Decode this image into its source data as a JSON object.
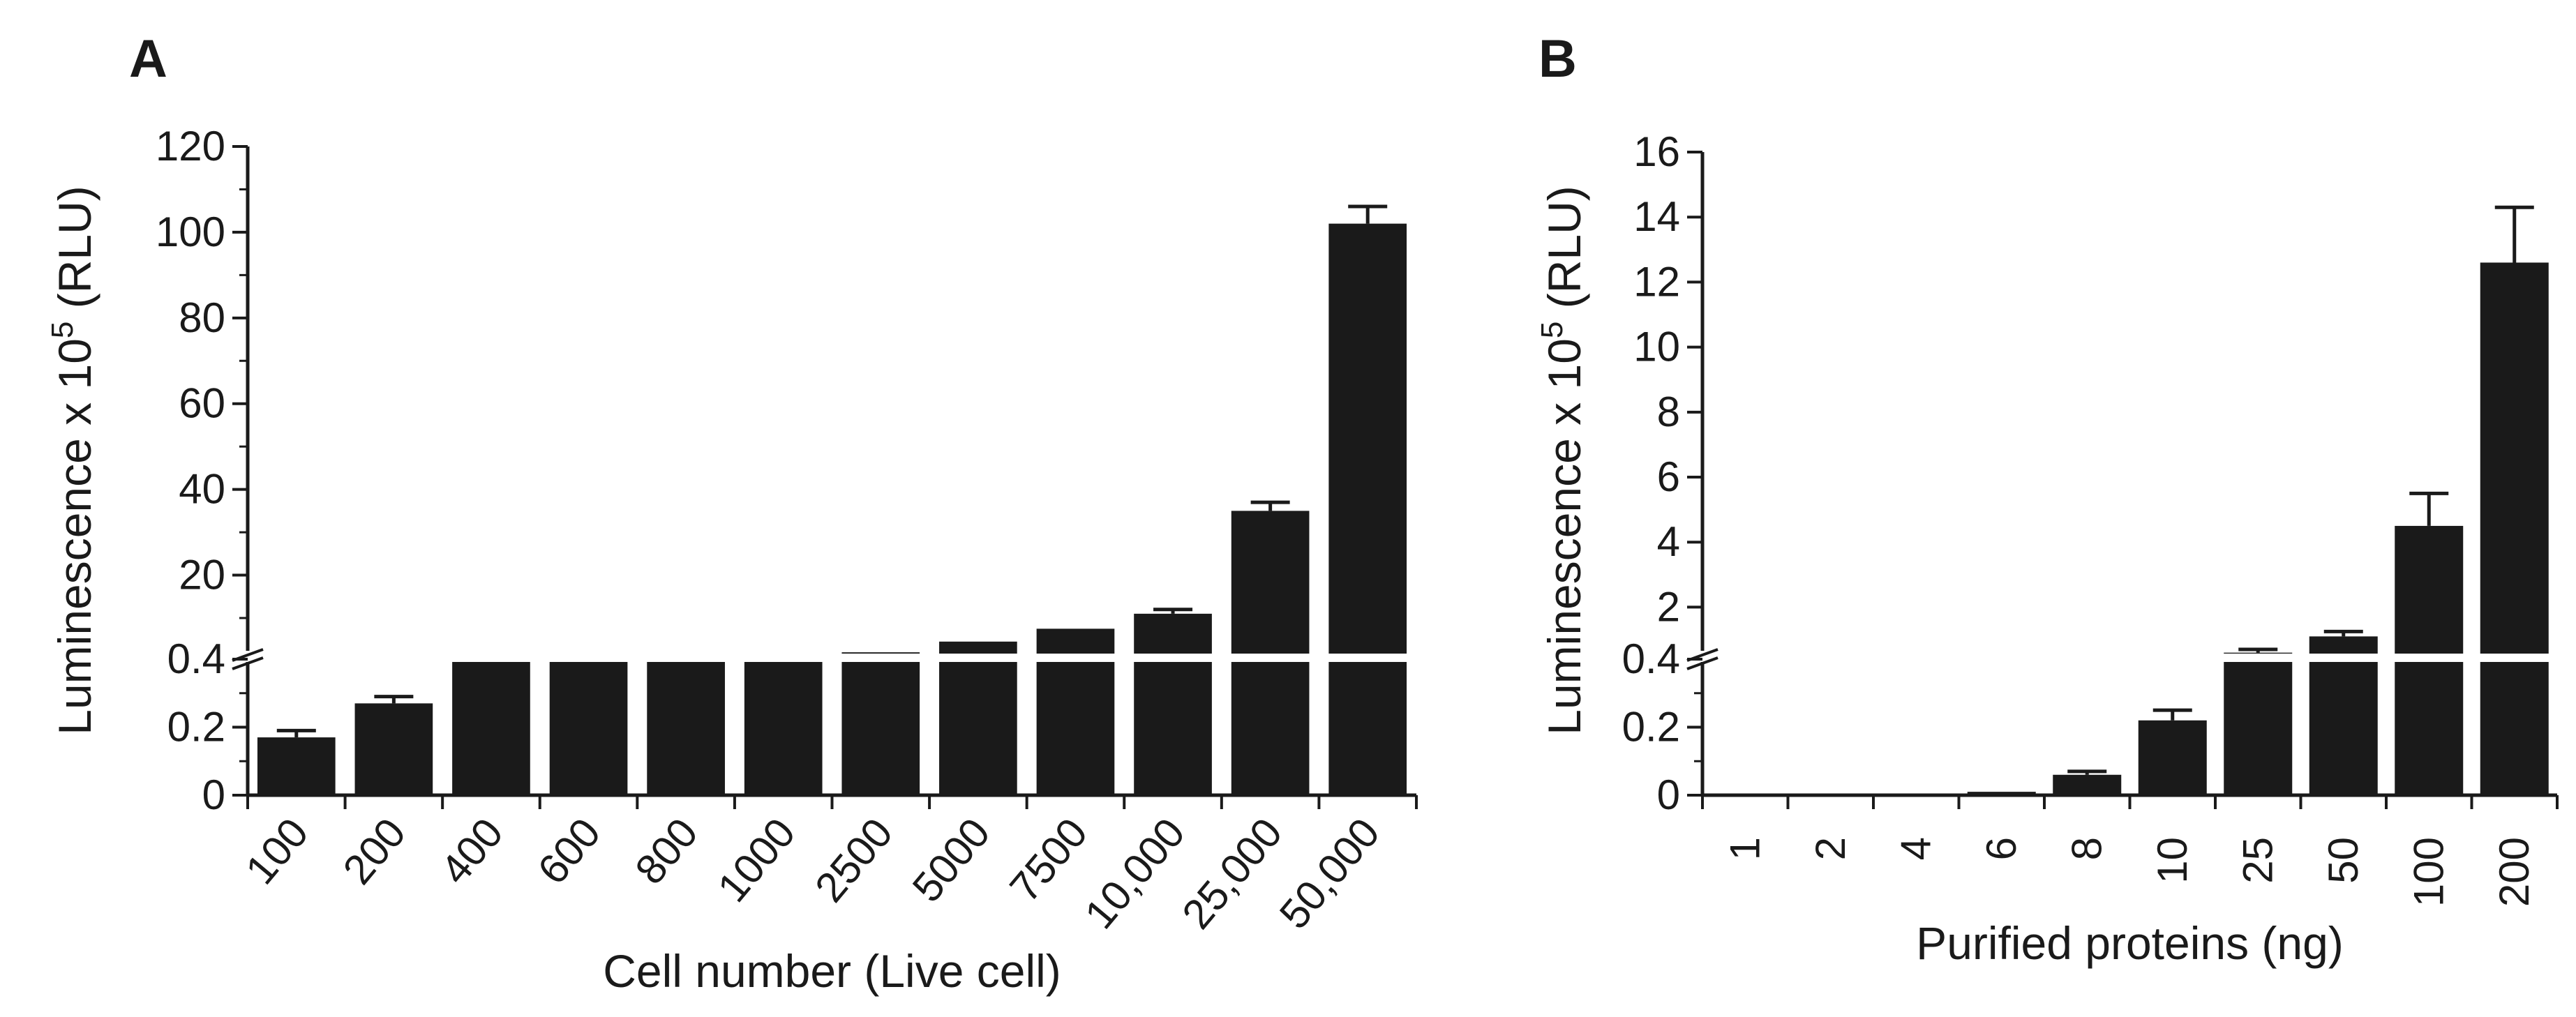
{
  "chart_data": [
    {
      "type": "bar",
      "panel_label": "A",
      "xlabel": "Cell number (Live cell)",
      "ylabel_main": "Luminescence x 10",
      "ylabel_sup": "5",
      "ylabel_tail": " (RLU)",
      "categories": [
        "100",
        "200",
        "400",
        "600",
        "800",
        "1000",
        "2500",
        "5000",
        "7500",
        "10,000",
        "25,000",
        "50,000"
      ],
      "values": [
        0.17,
        0.27,
        0.6,
        0.7,
        0.9,
        1.0,
        2.0,
        4.5,
        7.5,
        11.0,
        35.0,
        102.0
      ],
      "errors": [
        0.02,
        0.02,
        0.0,
        0.0,
        0.0,
        0.0,
        0.0,
        0.0,
        0.0,
        1.0,
        2.0,
        4.0
      ],
      "axis_break": {
        "lower": [
          0,
          0.4
        ],
        "upper": [
          0.4,
          120
        ]
      },
      "yticks_lower": [
        "0",
        "0.2",
        "0.4"
      ],
      "yticks_upper": [
        "20",
        "40",
        "60",
        "80",
        "100",
        "120"
      ],
      "grid": false,
      "legend": "none"
    },
    {
      "type": "bar",
      "panel_label": "B",
      "xlabel": "Purified proteins (ng)",
      "ylabel_main": "Luminescence x 10",
      "ylabel_sup": "5",
      "ylabel_tail": " (RLU)",
      "categories": [
        "1",
        "2",
        "4",
        "6",
        "8",
        "10",
        "25",
        "50",
        "100",
        "200"
      ],
      "values": [
        0.002,
        0.003,
        0.005,
        0.01,
        0.06,
        0.22,
        0.6,
        1.1,
        4.5,
        12.6
      ],
      "errors": [
        0.0,
        0.0,
        0.0,
        0.0,
        0.01,
        0.03,
        0.1,
        0.15,
        1.0,
        1.7
      ],
      "axis_break": {
        "lower": [
          0,
          0.4
        ],
        "upper": [
          0.4,
          16
        ]
      },
      "yticks_lower": [
        "0",
        "0.2",
        "0.4"
      ],
      "yticks_upper": [
        "2",
        "4",
        "6",
        "8",
        "10",
        "12",
        "14",
        "16"
      ],
      "grid": false,
      "legend": "none"
    }
  ]
}
